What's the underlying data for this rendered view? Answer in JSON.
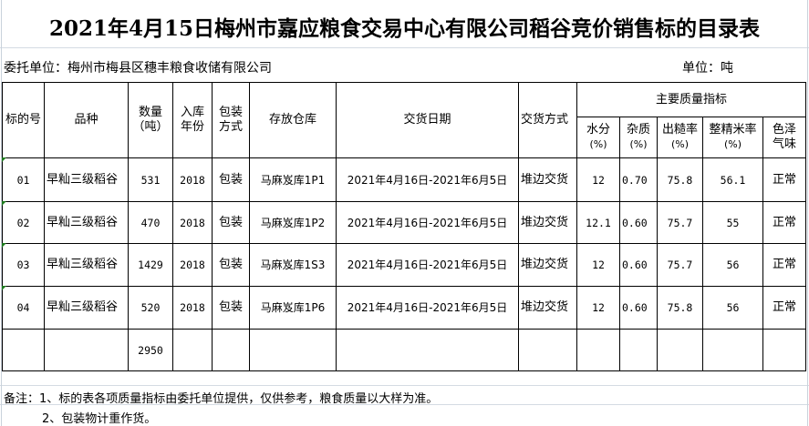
{
  "title": "2021年4月15日梅州市嘉应粮食交易中心有限公司稻谷竞价销售标的目录表",
  "client": "委托单位：梅州市梅县区穗丰粮食收储有限公司",
  "unit": "单位：吨",
  "headers": {
    "lot_no": "标的号",
    "variety": "品种",
    "qty": "数量",
    "qty_unit": "（吨）",
    "year_1": "入库",
    "year_2": "年份",
    "pack_1": "包装",
    "pack_2": "方式",
    "warehouse": "存放仓库",
    "date": "交货日期",
    "method": "交货方式",
    "quality": "主要质量指标",
    "moisture": "水分",
    "impurity": "杂质",
    "yield": "出糙率",
    "head_rice": "整精米率",
    "pct": "(%)",
    "color_1": "色泽",
    "color_2": "气味"
  },
  "rows": [
    {
      "no": "01",
      "variety": "早籼三级稻谷",
      "qty": "531",
      "year": "2018",
      "pack": "包装",
      "warehouse": "马麻岌库1P1",
      "date": "2021年4月16日-2021年6月5日",
      "method": "堆边交货",
      "moisture": "12",
      "impurity": "0.70",
      "yield": "75.8",
      "head_rice": "56.1",
      "color": "正常"
    },
    {
      "no": "02",
      "variety": "早籼三级稻谷",
      "qty": "470",
      "year": "2018",
      "pack": "包装",
      "warehouse": "马麻岌库1P2",
      "date": "2021年4月16日-2021年6月5日",
      "method": "堆边交货",
      "moisture": "12.1",
      "impurity": "0.60",
      "yield": "75.7",
      "head_rice": "55",
      "color": "正常"
    },
    {
      "no": "03",
      "variety": "早籼三级稻谷",
      "qty": "1429",
      "year": "2018",
      "pack": "包装",
      "warehouse": "马麻岌库1S3",
      "date": "2021年4月16日-2021年6月5日",
      "method": "堆边交货",
      "moisture": "12",
      "impurity": "0.60",
      "yield": "75.7",
      "head_rice": "56",
      "color": "正常"
    },
    {
      "no": "04",
      "variety": "早籼三级稻谷",
      "qty": "520",
      "year": "2018",
      "pack": "包装",
      "warehouse": "马麻岌库1P6",
      "date": "2021年4月16日-2021年6月5日",
      "method": "堆边交货",
      "moisture": "12",
      "impurity": "0.60",
      "yield": "75.8",
      "head_rice": "56",
      "color": "正常"
    }
  ],
  "total_qty": "2950",
  "notes": [
    "备注：1、标的表各项质量指标由委托单位提供，仅供参考，粮食质量以大样为准。",
    "2、包装物计重作货。"
  ],
  "colors": {
    "border": "#000000",
    "gridline": "#d4dbe3",
    "cell_marker": "#1e7b1e"
  }
}
